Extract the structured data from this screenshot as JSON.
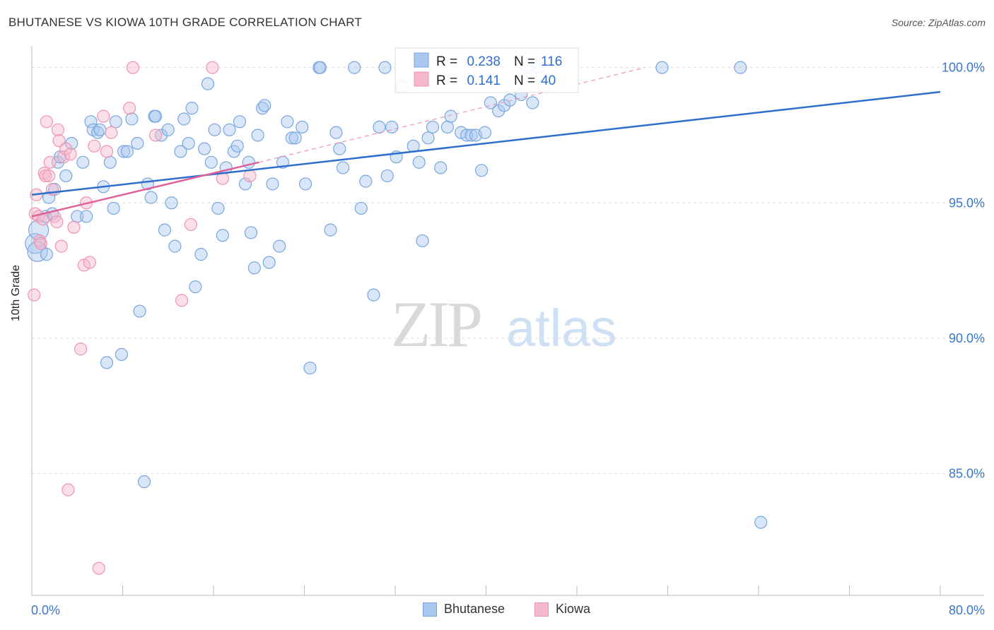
{
  "chart_data": {
    "type": "scatter",
    "title": "BHUTANESE VS KIOWA 10TH GRADE CORRELATION CHART",
    "source": "Source: ZipAtlas.com",
    "ylabel": "10th Grade",
    "xlabel": "",
    "xlim": [
      0,
      80
    ],
    "ylim": [
      80.5,
      100.8
    ],
    "x_tick_labels": [
      "0.0%",
      "80.0%"
    ],
    "y_ticks": [
      85,
      90,
      95,
      100
    ],
    "y_tick_labels": [
      "85.0%",
      "90.0%",
      "95.0%",
      "100.0%"
    ],
    "grid": true,
    "watermark": {
      "zip": "ZIP",
      "atlas": "atlas"
    },
    "stats": [
      {
        "r_label": "R =",
        "r_value": "0.238",
        "n_label": "N =",
        "n_value": "116"
      },
      {
        "r_label": "R =",
        "r_value": "0.141",
        "n_label": "N =",
        "n_value": "40"
      }
    ],
    "series": [
      {
        "name": "Bhutanese",
        "color": "#a8c8f0",
        "stroke": "#7aa6df",
        "line_color": "#2f6fcc",
        "trend": {
          "x0": 0,
          "y0": 95.3,
          "x1": 80,
          "y1": 99.1
        },
        "points": [
          [
            0.3,
            93.5
          ],
          [
            0.5,
            93.2
          ],
          [
            0.6,
            94.0
          ],
          [
            1.2,
            94.5
          ],
          [
            1.3,
            93.1
          ],
          [
            1.5,
            95.2
          ],
          [
            1.8,
            94.6
          ],
          [
            2.0,
            95.5
          ],
          [
            2.3,
            96.5
          ],
          [
            2.5,
            96.7
          ],
          [
            3.0,
            96.0
          ],
          [
            3.5,
            97.2
          ],
          [
            4.0,
            94.5
          ],
          [
            4.5,
            96.5
          ],
          [
            4.8,
            94.5
          ],
          [
            5.2,
            98.0
          ],
          [
            5.4,
            97.7
          ],
          [
            5.8,
            97.6
          ],
          [
            6.0,
            97.7
          ],
          [
            6.3,
            95.6
          ],
          [
            6.6,
            89.1
          ],
          [
            6.9,
            96.5
          ],
          [
            7.2,
            94.8
          ],
          [
            7.4,
            98.0
          ],
          [
            7.9,
            89.4
          ],
          [
            8.1,
            96.9
          ],
          [
            8.4,
            96.9
          ],
          [
            8.8,
            98.1
          ],
          [
            9.3,
            97.2
          ],
          [
            9.5,
            91.0
          ],
          [
            9.9,
            84.7
          ],
          [
            10.2,
            95.7
          ],
          [
            10.5,
            95.2
          ],
          [
            10.8,
            98.2
          ],
          [
            10.9,
            98.2
          ],
          [
            11.4,
            97.5
          ],
          [
            11.7,
            94.0
          ],
          [
            12.0,
            97.7
          ],
          [
            12.3,
            95.0
          ],
          [
            12.6,
            93.4
          ],
          [
            13.1,
            96.9
          ],
          [
            13.4,
            98.1
          ],
          [
            13.8,
            97.2
          ],
          [
            14.1,
            98.5
          ],
          [
            14.4,
            91.9
          ],
          [
            14.9,
            93.1
          ],
          [
            15.2,
            97.0
          ],
          [
            15.5,
            99.4
          ],
          [
            15.8,
            96.5
          ],
          [
            16.1,
            97.7
          ],
          [
            16.4,
            94.8
          ],
          [
            16.8,
            93.8
          ],
          [
            17.1,
            96.3
          ],
          [
            17.4,
            97.7
          ],
          [
            17.8,
            96.9
          ],
          [
            18.1,
            97.1
          ],
          [
            18.3,
            98.0
          ],
          [
            18.8,
            95.7
          ],
          [
            19.1,
            96.5
          ],
          [
            19.3,
            93.9
          ],
          [
            19.6,
            92.6
          ],
          [
            19.9,
            97.5
          ],
          [
            20.3,
            98.5
          ],
          [
            20.5,
            98.6
          ],
          [
            20.9,
            92.8
          ],
          [
            21.2,
            95.7
          ],
          [
            21.8,
            93.4
          ],
          [
            22.1,
            96.5
          ],
          [
            22.5,
            98.0
          ],
          [
            22.9,
            97.4
          ],
          [
            23.2,
            97.4
          ],
          [
            23.8,
            97.8
          ],
          [
            24.1,
            95.7
          ],
          [
            24.5,
            88.9
          ],
          [
            25.3,
            100.0
          ],
          [
            25.4,
            100.0
          ],
          [
            26.3,
            94.0
          ],
          [
            26.8,
            97.6
          ],
          [
            27.1,
            97.0
          ],
          [
            27.4,
            96.3
          ],
          [
            28.4,
            100.0
          ],
          [
            29.0,
            94.8
          ],
          [
            29.4,
            95.8
          ],
          [
            30.1,
            91.6
          ],
          [
            30.6,
            97.8
          ],
          [
            31.1,
            100.0
          ],
          [
            31.3,
            96.0
          ],
          [
            31.7,
            97.8
          ],
          [
            32.1,
            96.7
          ],
          [
            32.6,
            99.3
          ],
          [
            33.6,
            97.1
          ],
          [
            34.1,
            96.5
          ],
          [
            34.4,
            93.6
          ],
          [
            34.9,
            97.4
          ],
          [
            35.3,
            97.8
          ],
          [
            36.0,
            96.3
          ],
          [
            36.6,
            97.8
          ],
          [
            36.9,
            98.2
          ],
          [
            37.8,
            97.6
          ],
          [
            38.3,
            97.5
          ],
          [
            38.7,
            97.5
          ],
          [
            39.1,
            97.5
          ],
          [
            39.6,
            96.2
          ],
          [
            39.9,
            97.6
          ],
          [
            40.4,
            98.7
          ],
          [
            41.1,
            98.4
          ],
          [
            41.6,
            98.6
          ],
          [
            42.1,
            98.8
          ],
          [
            43.1,
            99.0
          ],
          [
            43.6,
            100.0
          ],
          [
            44.1,
            98.7
          ],
          [
            44.6,
            100.0
          ],
          [
            45.1,
            99.3
          ],
          [
            55.5,
            100.0
          ],
          [
            62.4,
            100.0
          ],
          [
            64.2,
            83.2
          ]
        ]
      },
      {
        "name": "Kiowa",
        "color": "#f5b8cb",
        "stroke": "#ee95b2",
        "line_color": "#e0609a",
        "trend": {
          "x0": 0,
          "y0": 94.5,
          "x1": 20,
          "y1": 96.5
        },
        "trend_ext": {
          "x0": 20,
          "y0": 96.5,
          "x1": 54,
          "y1": 100.0
        },
        "points": [
          [
            0.2,
            91.6
          ],
          [
            0.3,
            94.6
          ],
          [
            0.4,
            95.3
          ],
          [
            0.6,
            94.5
          ],
          [
            0.7,
            93.6
          ],
          [
            0.8,
            93.5
          ],
          [
            1.0,
            94.4
          ],
          [
            1.1,
            96.1
          ],
          [
            1.2,
            96.0
          ],
          [
            1.3,
            98.0
          ],
          [
            1.5,
            96.0
          ],
          [
            1.6,
            96.5
          ],
          [
            1.8,
            95.5
          ],
          [
            2.0,
            94.5
          ],
          [
            2.2,
            94.3
          ],
          [
            2.3,
            97.7
          ],
          [
            2.4,
            97.3
          ],
          [
            2.6,
            93.4
          ],
          [
            2.8,
            96.7
          ],
          [
            3.0,
            97.0
          ],
          [
            3.2,
            84.4
          ],
          [
            3.4,
            96.8
          ],
          [
            3.7,
            94.1
          ],
          [
            4.3,
            89.6
          ],
          [
            4.6,
            92.7
          ],
          [
            4.8,
            95.0
          ],
          [
            5.1,
            92.8
          ],
          [
            5.5,
            97.1
          ],
          [
            5.9,
            81.5
          ],
          [
            6.3,
            98.2
          ],
          [
            6.6,
            96.9
          ],
          [
            7.0,
            97.6
          ],
          [
            8.6,
            98.5
          ],
          [
            8.9,
            100.0
          ],
          [
            10.9,
            97.5
          ],
          [
            13.2,
            91.4
          ],
          [
            14.0,
            94.2
          ],
          [
            15.9,
            100.0
          ],
          [
            16.8,
            95.9
          ],
          [
            19.2,
            96.0
          ]
        ]
      }
    ]
  }
}
